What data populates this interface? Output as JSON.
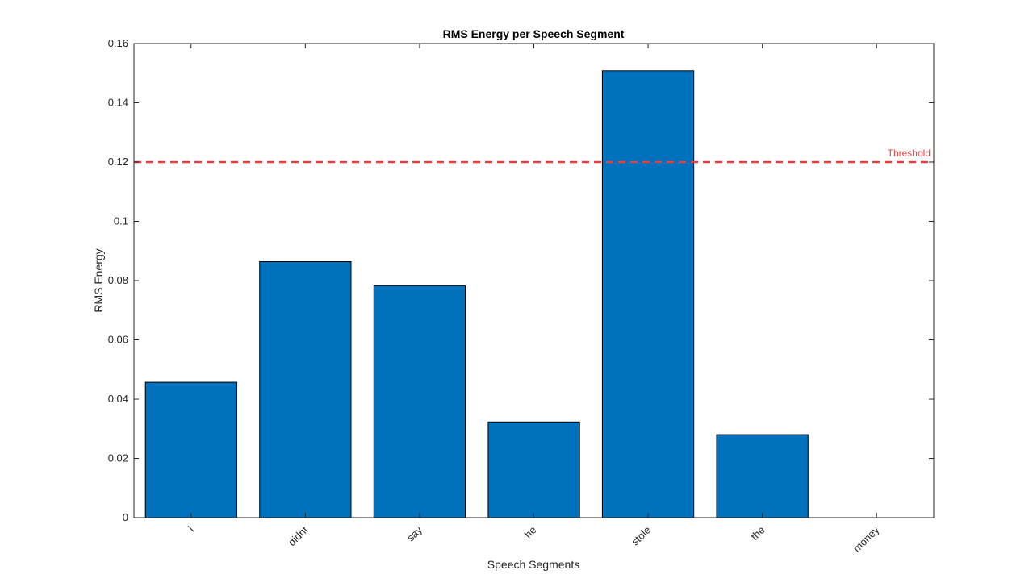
{
  "chart_data": {
    "type": "bar",
    "title": "RMS Energy per Speech Segment",
    "xlabel": "Speech Segments",
    "ylabel": "RMS Energy",
    "categories": [
      "i",
      "didnt",
      "say",
      "he",
      "stole",
      "the",
      "money"
    ],
    "values": [
      0.0457,
      0.0864,
      0.0783,
      0.0323,
      0.1508,
      0.028,
      0
    ],
    "ylim": [
      0,
      0.16
    ],
    "yticks": [
      "0",
      "0.02",
      "0.04",
      "0.06",
      "0.08",
      "0.1",
      "0.12",
      "0.14",
      "0.16"
    ],
    "x_range": [
      -0.5,
      6.5
    ],
    "grid": false,
    "bar_color": "#0072BD",
    "bar_edge_color": "#000000",
    "threshold": {
      "value": 0.12,
      "label": "Threshold",
      "color": "#E83E3E",
      "style": "dashed"
    }
  }
}
